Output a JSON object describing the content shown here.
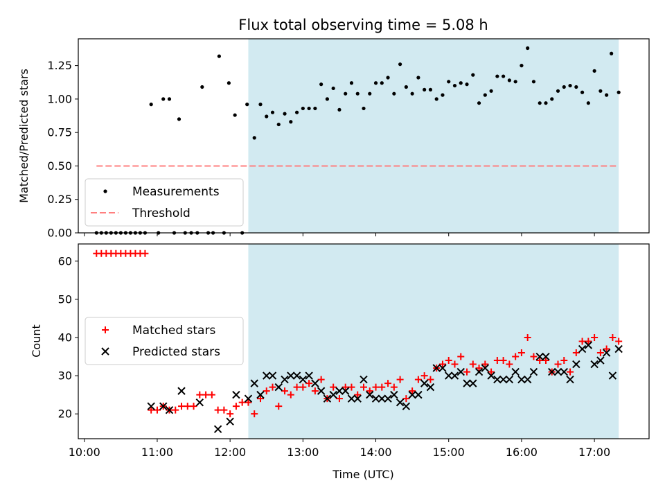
{
  "chart_data": [
    {
      "type": "scatter",
      "title": "Flux total observing time = 5.08 h",
      "xlabel": "",
      "ylabel": "Matched/Predicted stars",
      "xlim": [
        "09:55",
        "17:45"
      ],
      "ylim": [
        0,
        1.45
      ],
      "yticks": [
        "0.00",
        "0.25",
        "0.50",
        "0.75",
        "1.00",
        "1.25"
      ],
      "shaded_region": {
        "start": "12:15",
        "end": "17:20",
        "color": "#add8e6"
      },
      "threshold": {
        "name": "Threshold",
        "value": 0.5,
        "start": "10:10",
        "end": "17:20",
        "color": "#ff7f7f"
      },
      "legend": {
        "position": "lower-left",
        "entries": [
          "Measurements",
          "Threshold"
        ]
      },
      "series": [
        {
          "name": "Measurements",
          "marker": "dot",
          "color": "#000000",
          "points": [
            [
              "10:10",
              0
            ],
            [
              "10:14",
              0
            ],
            [
              "10:18",
              0
            ],
            [
              "10:22",
              0
            ],
            [
              "10:26",
              0
            ],
            [
              "10:30",
              0
            ],
            [
              "10:34",
              0
            ],
            [
              "10:38",
              0
            ],
            [
              "10:42",
              0
            ],
            [
              "10:46",
              0
            ],
            [
              "10:50",
              0
            ],
            [
              "10:55",
              0.96
            ],
            [
              "11:01",
              0
            ],
            [
              "11:05",
              1.0
            ],
            [
              "11:10",
              1.0
            ],
            [
              "11:14",
              0
            ],
            [
              "11:18",
              0.85
            ],
            [
              "11:23",
              0
            ],
            [
              "11:28",
              0
            ],
            [
              "11:33",
              0
            ],
            [
              "11:37",
              1.09
            ],
            [
              "11:42",
              0
            ],
            [
              "11:46",
              0
            ],
            [
              "11:51",
              1.32
            ],
            [
              "11:55",
              0
            ],
            [
              "11:59",
              1.12
            ],
            [
              "12:04",
              0.88
            ],
            [
              "12:10",
              0
            ],
            [
              "12:14",
              0.96
            ],
            [
              "12:20",
              0.71
            ],
            [
              "12:25",
              0.96
            ],
            [
              "12:30",
              0.87
            ],
            [
              "12:35",
              0.9
            ],
            [
              "12:40",
              0.81
            ],
            [
              "12:45",
              0.89
            ],
            [
              "12:50",
              0.83
            ],
            [
              "12:55",
              0.9
            ],
            [
              "13:00",
              0.93
            ],
            [
              "13:05",
              0.93
            ],
            [
              "13:10",
              0.93
            ],
            [
              "13:15",
              1.11
            ],
            [
              "13:20",
              1.0
            ],
            [
              "13:25",
              1.08
            ],
            [
              "13:30",
              0.92
            ],
            [
              "13:35",
              1.04
            ],
            [
              "13:40",
              1.12
            ],
            [
              "13:45",
              1.04
            ],
            [
              "13:50",
              0.93
            ],
            [
              "13:55",
              1.04
            ],
            [
              "14:00",
              1.12
            ],
            [
              "14:05",
              1.12
            ],
            [
              "14:10",
              1.16
            ],
            [
              "14:15",
              1.04
            ],
            [
              "14:20",
              1.26
            ],
            [
              "14:25",
              1.09
            ],
            [
              "14:30",
              1.04
            ],
            [
              "14:35",
              1.16
            ],
            [
              "14:40",
              1.07
            ],
            [
              "14:45",
              1.07
            ],
            [
              "14:50",
              1.0
            ],
            [
              "14:55",
              1.03
            ],
            [
              "15:00",
              1.13
            ],
            [
              "15:05",
              1.1
            ],
            [
              "15:10",
              1.12
            ],
            [
              "15:15",
              1.11
            ],
            [
              "15:20",
              1.18
            ],
            [
              "15:25",
              0.97
            ],
            [
              "15:30",
              1.03
            ],
            [
              "15:35",
              1.06
            ],
            [
              "15:40",
              1.17
            ],
            [
              "15:45",
              1.17
            ],
            [
              "15:50",
              1.14
            ],
            [
              "15:55",
              1.13
            ],
            [
              "16:00",
              1.25
            ],
            [
              "16:05",
              1.38
            ],
            [
              "16:10",
              1.13
            ],
            [
              "16:15",
              0.97
            ],
            [
              "16:20",
              0.97
            ],
            [
              "16:25",
              1.0
            ],
            [
              "16:30",
              1.06
            ],
            [
              "16:35",
              1.09
            ],
            [
              "16:40",
              1.1
            ],
            [
              "16:45",
              1.09
            ],
            [
              "16:50",
              1.05
            ],
            [
              "16:55",
              0.97
            ],
            [
              "17:00",
              1.21
            ],
            [
              "17:05",
              1.06
            ],
            [
              "17:10",
              1.03
            ],
            [
              "17:14",
              1.34
            ],
            [
              "17:20",
              1.05
            ]
          ]
        }
      ]
    },
    {
      "type": "scatter",
      "title": "",
      "xlabel": "Time (UTC)",
      "ylabel": "Count",
      "xlim": [
        "09:55",
        "17:45"
      ],
      "ylim": [
        13.5,
        64.5
      ],
      "xticks": [
        "10:00",
        "11:00",
        "12:00",
        "13:00",
        "14:00",
        "15:00",
        "16:00",
        "17:00"
      ],
      "yticks": [
        "20",
        "30",
        "40",
        "50",
        "60"
      ],
      "shaded_region": {
        "start": "12:15",
        "end": "17:20",
        "color": "#add8e6"
      },
      "legend": {
        "position": "center-left",
        "entries": [
          "Matched stars",
          "Predicted stars"
        ]
      },
      "series": [
        {
          "name": "Matched stars",
          "marker": "plus",
          "color": "#ff0000",
          "points": [
            [
              "10:10",
              62
            ],
            [
              "10:14",
              62
            ],
            [
              "10:18",
              62
            ],
            [
              "10:22",
              62
            ],
            [
              "10:26",
              62
            ],
            [
              "10:30",
              62
            ],
            [
              "10:34",
              62
            ],
            [
              "10:38",
              62
            ],
            [
              "10:42",
              62
            ],
            [
              "10:46",
              62
            ],
            [
              "10:50",
              62
            ],
            [
              "10:55",
              21
            ],
            [
              "11:00",
              21
            ],
            [
              "11:05",
              22
            ],
            [
              "11:10",
              21
            ],
            [
              "11:15",
              21
            ],
            [
              "11:20",
              22
            ],
            [
              "11:25",
              22
            ],
            [
              "11:30",
              22
            ],
            [
              "11:35",
              25
            ],
            [
              "11:40",
              25
            ],
            [
              "11:45",
              25
            ],
            [
              "11:50",
              21
            ],
            [
              "11:55",
              21
            ],
            [
              "12:00",
              20
            ],
            [
              "12:05",
              22
            ],
            [
              "12:10",
              23
            ],
            [
              "12:15",
              23
            ],
            [
              "12:20",
              20
            ],
            [
              "12:25",
              24
            ],
            [
              "12:30",
              26
            ],
            [
              "12:35",
              27
            ],
            [
              "12:40",
              22
            ],
            [
              "12:45",
              26
            ],
            [
              "12:50",
              25
            ],
            [
              "12:55",
              27
            ],
            [
              "13:00",
              27
            ],
            [
              "13:05",
              28
            ],
            [
              "13:10",
              26
            ],
            [
              "13:15",
              29
            ],
            [
              "13:20",
              24
            ],
            [
              "13:25",
              27
            ],
            [
              "13:30",
              24
            ],
            [
              "13:35",
              27
            ],
            [
              "13:40",
              27
            ],
            [
              "13:45",
              25
            ],
            [
              "13:50",
              27
            ],
            [
              "13:55",
              26
            ],
            [
              "14:00",
              27
            ],
            [
              "14:05",
              27
            ],
            [
              "14:10",
              28
            ],
            [
              "14:15",
              27
            ],
            [
              "14:20",
              29
            ],
            [
              "14:25",
              24
            ],
            [
              "14:30",
              26
            ],
            [
              "14:35",
              29
            ],
            [
              "14:40",
              30
            ],
            [
              "14:45",
              29
            ],
            [
              "14:50",
              32
            ],
            [
              "14:55",
              33
            ],
            [
              "15:00",
              34
            ],
            [
              "15:05",
              33
            ],
            [
              "15:10",
              35
            ],
            [
              "15:15",
              31
            ],
            [
              "15:20",
              33
            ],
            [
              "15:25",
              32
            ],
            [
              "15:30",
              33
            ],
            [
              "15:35",
              31
            ],
            [
              "15:40",
              34
            ],
            [
              "15:45",
              34
            ],
            [
              "15:50",
              33
            ],
            [
              "15:55",
              35
            ],
            [
              "16:00",
              36
            ],
            [
              "16:05",
              40
            ],
            [
              "16:10",
              35
            ],
            [
              "16:15",
              34
            ],
            [
              "16:20",
              34
            ],
            [
              "16:25",
              31
            ],
            [
              "16:30",
              33
            ],
            [
              "16:35",
              34
            ],
            [
              "16:40",
              31
            ],
            [
              "16:45",
              36
            ],
            [
              "16:50",
              39
            ],
            [
              "16:55",
              39
            ],
            [
              "17:00",
              40
            ],
            [
              "17:05",
              36
            ],
            [
              "17:10",
              37
            ],
            [
              "17:15",
              40
            ],
            [
              "17:20",
              39
            ]
          ]
        },
        {
          "name": "Predicted stars",
          "marker": "x",
          "color": "#000000",
          "points": [
            [
              "10:55",
              22
            ],
            [
              "11:05",
              22
            ],
            [
              "11:10",
              21
            ],
            [
              "11:20",
              26
            ],
            [
              "11:35",
              23
            ],
            [
              "11:50",
              16
            ],
            [
              "12:00",
              18
            ],
            [
              "12:05",
              25
            ],
            [
              "12:15",
              24
            ],
            [
              "12:20",
              28
            ],
            [
              "12:25",
              25
            ],
            [
              "12:30",
              30
            ],
            [
              "12:35",
              30
            ],
            [
              "12:40",
              27
            ],
            [
              "12:45",
              29
            ],
            [
              "12:50",
              30
            ],
            [
              "12:55",
              30
            ],
            [
              "13:00",
              29
            ],
            [
              "13:05",
              30
            ],
            [
              "13:10",
              28
            ],
            [
              "13:15",
              26
            ],
            [
              "13:20",
              24
            ],
            [
              "13:25",
              25
            ],
            [
              "13:30",
              26
            ],
            [
              "13:35",
              26
            ],
            [
              "13:40",
              24
            ],
            [
              "13:45",
              24
            ],
            [
              "13:50",
              29
            ],
            [
              "13:55",
              25
            ],
            [
              "14:00",
              24
            ],
            [
              "14:05",
              24
            ],
            [
              "14:10",
              24
            ],
            [
              "14:15",
              25
            ],
            [
              "14:20",
              23
            ],
            [
              "14:25",
              22
            ],
            [
              "14:30",
              25
            ],
            [
              "14:35",
              25
            ],
            [
              "14:40",
              28
            ],
            [
              "14:45",
              27
            ],
            [
              "14:50",
              32
            ],
            [
              "14:55",
              32
            ],
            [
              "15:00",
              30
            ],
            [
              "15:05",
              30
            ],
            [
              "15:10",
              31
            ],
            [
              "15:15",
              28
            ],
            [
              "15:20",
              28
            ],
            [
              "15:25",
              31
            ],
            [
              "15:30",
              32
            ],
            [
              "15:35",
              30
            ],
            [
              "15:40",
              29
            ],
            [
              "15:45",
              29
            ],
            [
              "15:50",
              29
            ],
            [
              "15:55",
              31
            ],
            [
              "16:00",
              29
            ],
            [
              "16:05",
              29
            ],
            [
              "16:10",
              31
            ],
            [
              "16:15",
              35
            ],
            [
              "16:20",
              35
            ],
            [
              "16:25",
              31
            ],
            [
              "16:30",
              31
            ],
            [
              "16:35",
              31
            ],
            [
              "16:40",
              29
            ],
            [
              "16:45",
              33
            ],
            [
              "16:50",
              37
            ],
            [
              "16:55",
              38
            ],
            [
              "17:00",
              33
            ],
            [
              "17:05",
              34
            ],
            [
              "17:10",
              36
            ],
            [
              "17:15",
              30
            ],
            [
              "17:20",
              37
            ]
          ]
        }
      ]
    }
  ]
}
